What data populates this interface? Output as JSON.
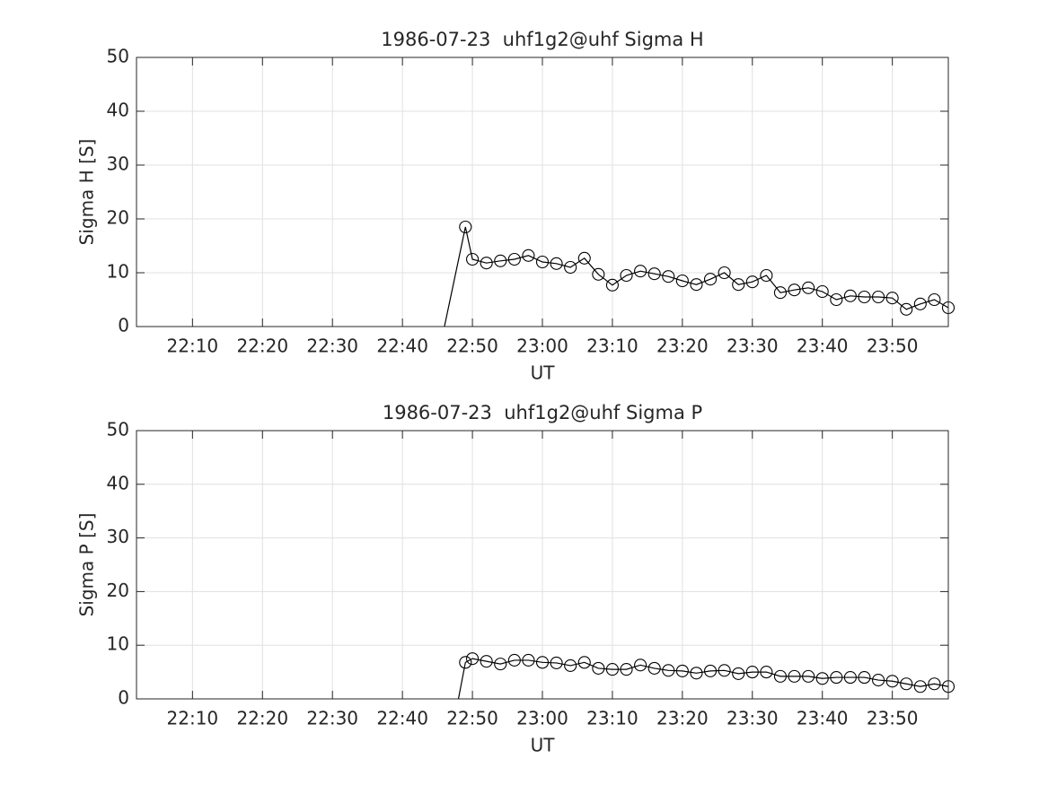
{
  "chart_data": [
    {
      "type": "line",
      "title": "1986-07-23  uhf1g2@uhf Sigma H",
      "xlabel": "UT",
      "ylabel": "Sigma H [S]",
      "x": [
        "22:46",
        "22:49",
        "22:50",
        "22:52",
        "22:54",
        "22:56",
        "22:58",
        "23:00",
        "23:02",
        "23:04",
        "23:06",
        "23:08",
        "23:10",
        "23:12",
        "23:14",
        "23:16",
        "23:18",
        "23:20",
        "23:22",
        "23:24",
        "23:26",
        "23:28",
        "23:30",
        "23:32",
        "23:34",
        "23:36",
        "23:38",
        "23:40",
        "23:42",
        "23:44",
        "23:46",
        "23:48",
        "23:50",
        "23:52",
        "23:54",
        "23:56",
        "23:58"
      ],
      "values": [
        0,
        18.5,
        12.5,
        11.8,
        12.2,
        12.5,
        13.2,
        12.0,
        11.7,
        11.0,
        12.7,
        9.7,
        7.7,
        9.5,
        10.3,
        9.8,
        9.3,
        8.5,
        7.8,
        8.8,
        10.0,
        7.8,
        8.3,
        9.5,
        6.3,
        6.8,
        7.2,
        6.5,
        5.0,
        5.7,
        5.5,
        5.5,
        5.3,
        3.2,
        4.2,
        5.0,
        3.5
      ],
      "color": "#000000",
      "xlim": [
        "22:02",
        "23:58"
      ],
      "xticks": [
        "22:10",
        "22:20",
        "22:30",
        "22:40",
        "22:50",
        "23:00",
        "23:10",
        "23:20",
        "23:30",
        "23:40",
        "23:50"
      ],
      "ylim": [
        0,
        50
      ],
      "yticks": [
        0,
        10,
        20,
        30,
        40,
        50
      ],
      "grid": true
    },
    {
      "type": "line",
      "title": "1986-07-23  uhf1g2@uhf Sigma P",
      "xlabel": "UT",
      "ylabel": "Sigma P [S]",
      "x": [
        "22:48",
        "22:49",
        "22:50",
        "22:52",
        "22:54",
        "22:56",
        "22:58",
        "23:00",
        "23:02",
        "23:04",
        "23:06",
        "23:08",
        "23:10",
        "23:12",
        "23:14",
        "23:16",
        "23:18",
        "23:20",
        "23:22",
        "23:24",
        "23:26",
        "23:28",
        "23:30",
        "23:32",
        "23:34",
        "23:36",
        "23:38",
        "23:40",
        "23:42",
        "23:44",
        "23:46",
        "23:48",
        "23:50",
        "23:52",
        "23:54",
        "23:56",
        "23:58"
      ],
      "values": [
        0,
        6.8,
        7.5,
        7.0,
        6.5,
        7.2,
        7.2,
        6.8,
        6.7,
        6.2,
        6.8,
        5.7,
        5.5,
        5.5,
        6.3,
        5.7,
        5.3,
        5.2,
        4.8,
        5.2,
        5.3,
        4.7,
        5.0,
        5.0,
        4.2,
        4.2,
        4.2,
        3.8,
        4.0,
        4.0,
        4.0,
        3.5,
        3.3,
        2.8,
        2.3,
        2.8,
        2.3
      ],
      "color": "#000000",
      "xlim": [
        "22:02",
        "23:58"
      ],
      "xticks": [
        "22:10",
        "22:20",
        "22:30",
        "22:40",
        "22:50",
        "23:00",
        "23:10",
        "23:20",
        "23:30",
        "23:40",
        "23:50"
      ],
      "ylim": [
        0,
        50
      ],
      "yticks": [
        0,
        10,
        20,
        30,
        40,
        50
      ],
      "grid": true
    }
  ]
}
